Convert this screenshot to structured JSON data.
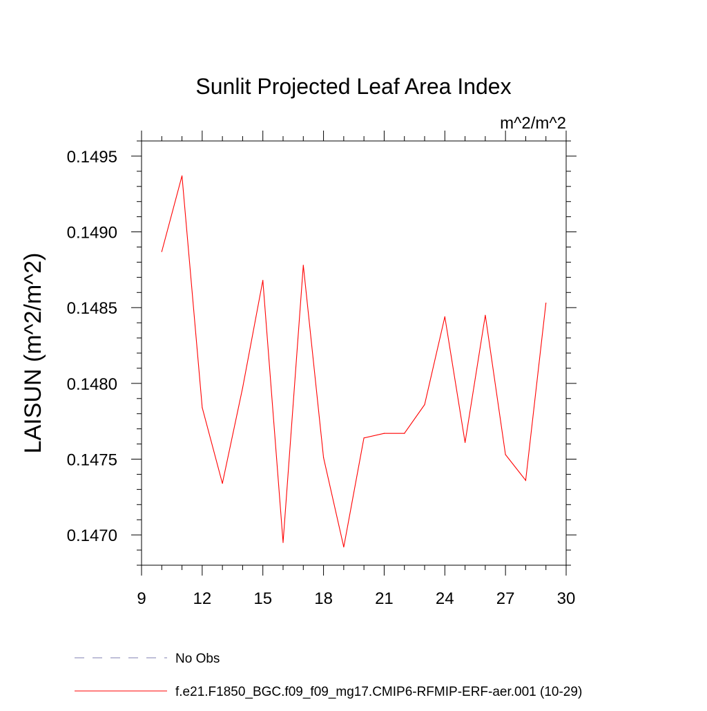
{
  "chart_data": {
    "type": "line",
    "title": "Sunlit Projected Leaf Area Index",
    "units": "m^2/m^2",
    "ylabel": "LAISUN  (m^2/m^2)",
    "xlabel": "",
    "xlim": [
      9,
      30
    ],
    "ylim": [
      0.1468,
      0.1496
    ],
    "xticks": [
      "9",
      "12",
      "15",
      "18",
      "21",
      "24",
      "27",
      "30"
    ],
    "yticks": [
      "0.1470",
      "0.1475",
      "0.1480",
      "0.1485",
      "0.1490",
      "0.1495"
    ],
    "grid": false,
    "legend_position": "bottom",
    "series": [
      {
        "name": "No Obs",
        "color": "#7f7fb2",
        "style": "dashed",
        "x": [],
        "values": []
      },
      {
        "name": "f.e21.F1850_BGC.f09_f09_mg17.CMIP6-RFMIP-ERF-aer.001 (10-29)",
        "color": "#ff0000",
        "style": "solid",
        "x": [
          10,
          11,
          12,
          13,
          14,
          15,
          16,
          17,
          18,
          19,
          20,
          21,
          22,
          23,
          24,
          25,
          26,
          27,
          28,
          29
        ],
        "values": [
          0.14887,
          0.14937,
          0.14784,
          0.14734,
          0.14797,
          0.14868,
          0.14695,
          0.14878,
          0.14751,
          0.14692,
          0.14764,
          0.14767,
          0.14767,
          0.14786,
          0.14844,
          0.14761,
          0.14845,
          0.14753,
          0.14736,
          0.14853
        ]
      }
    ]
  }
}
